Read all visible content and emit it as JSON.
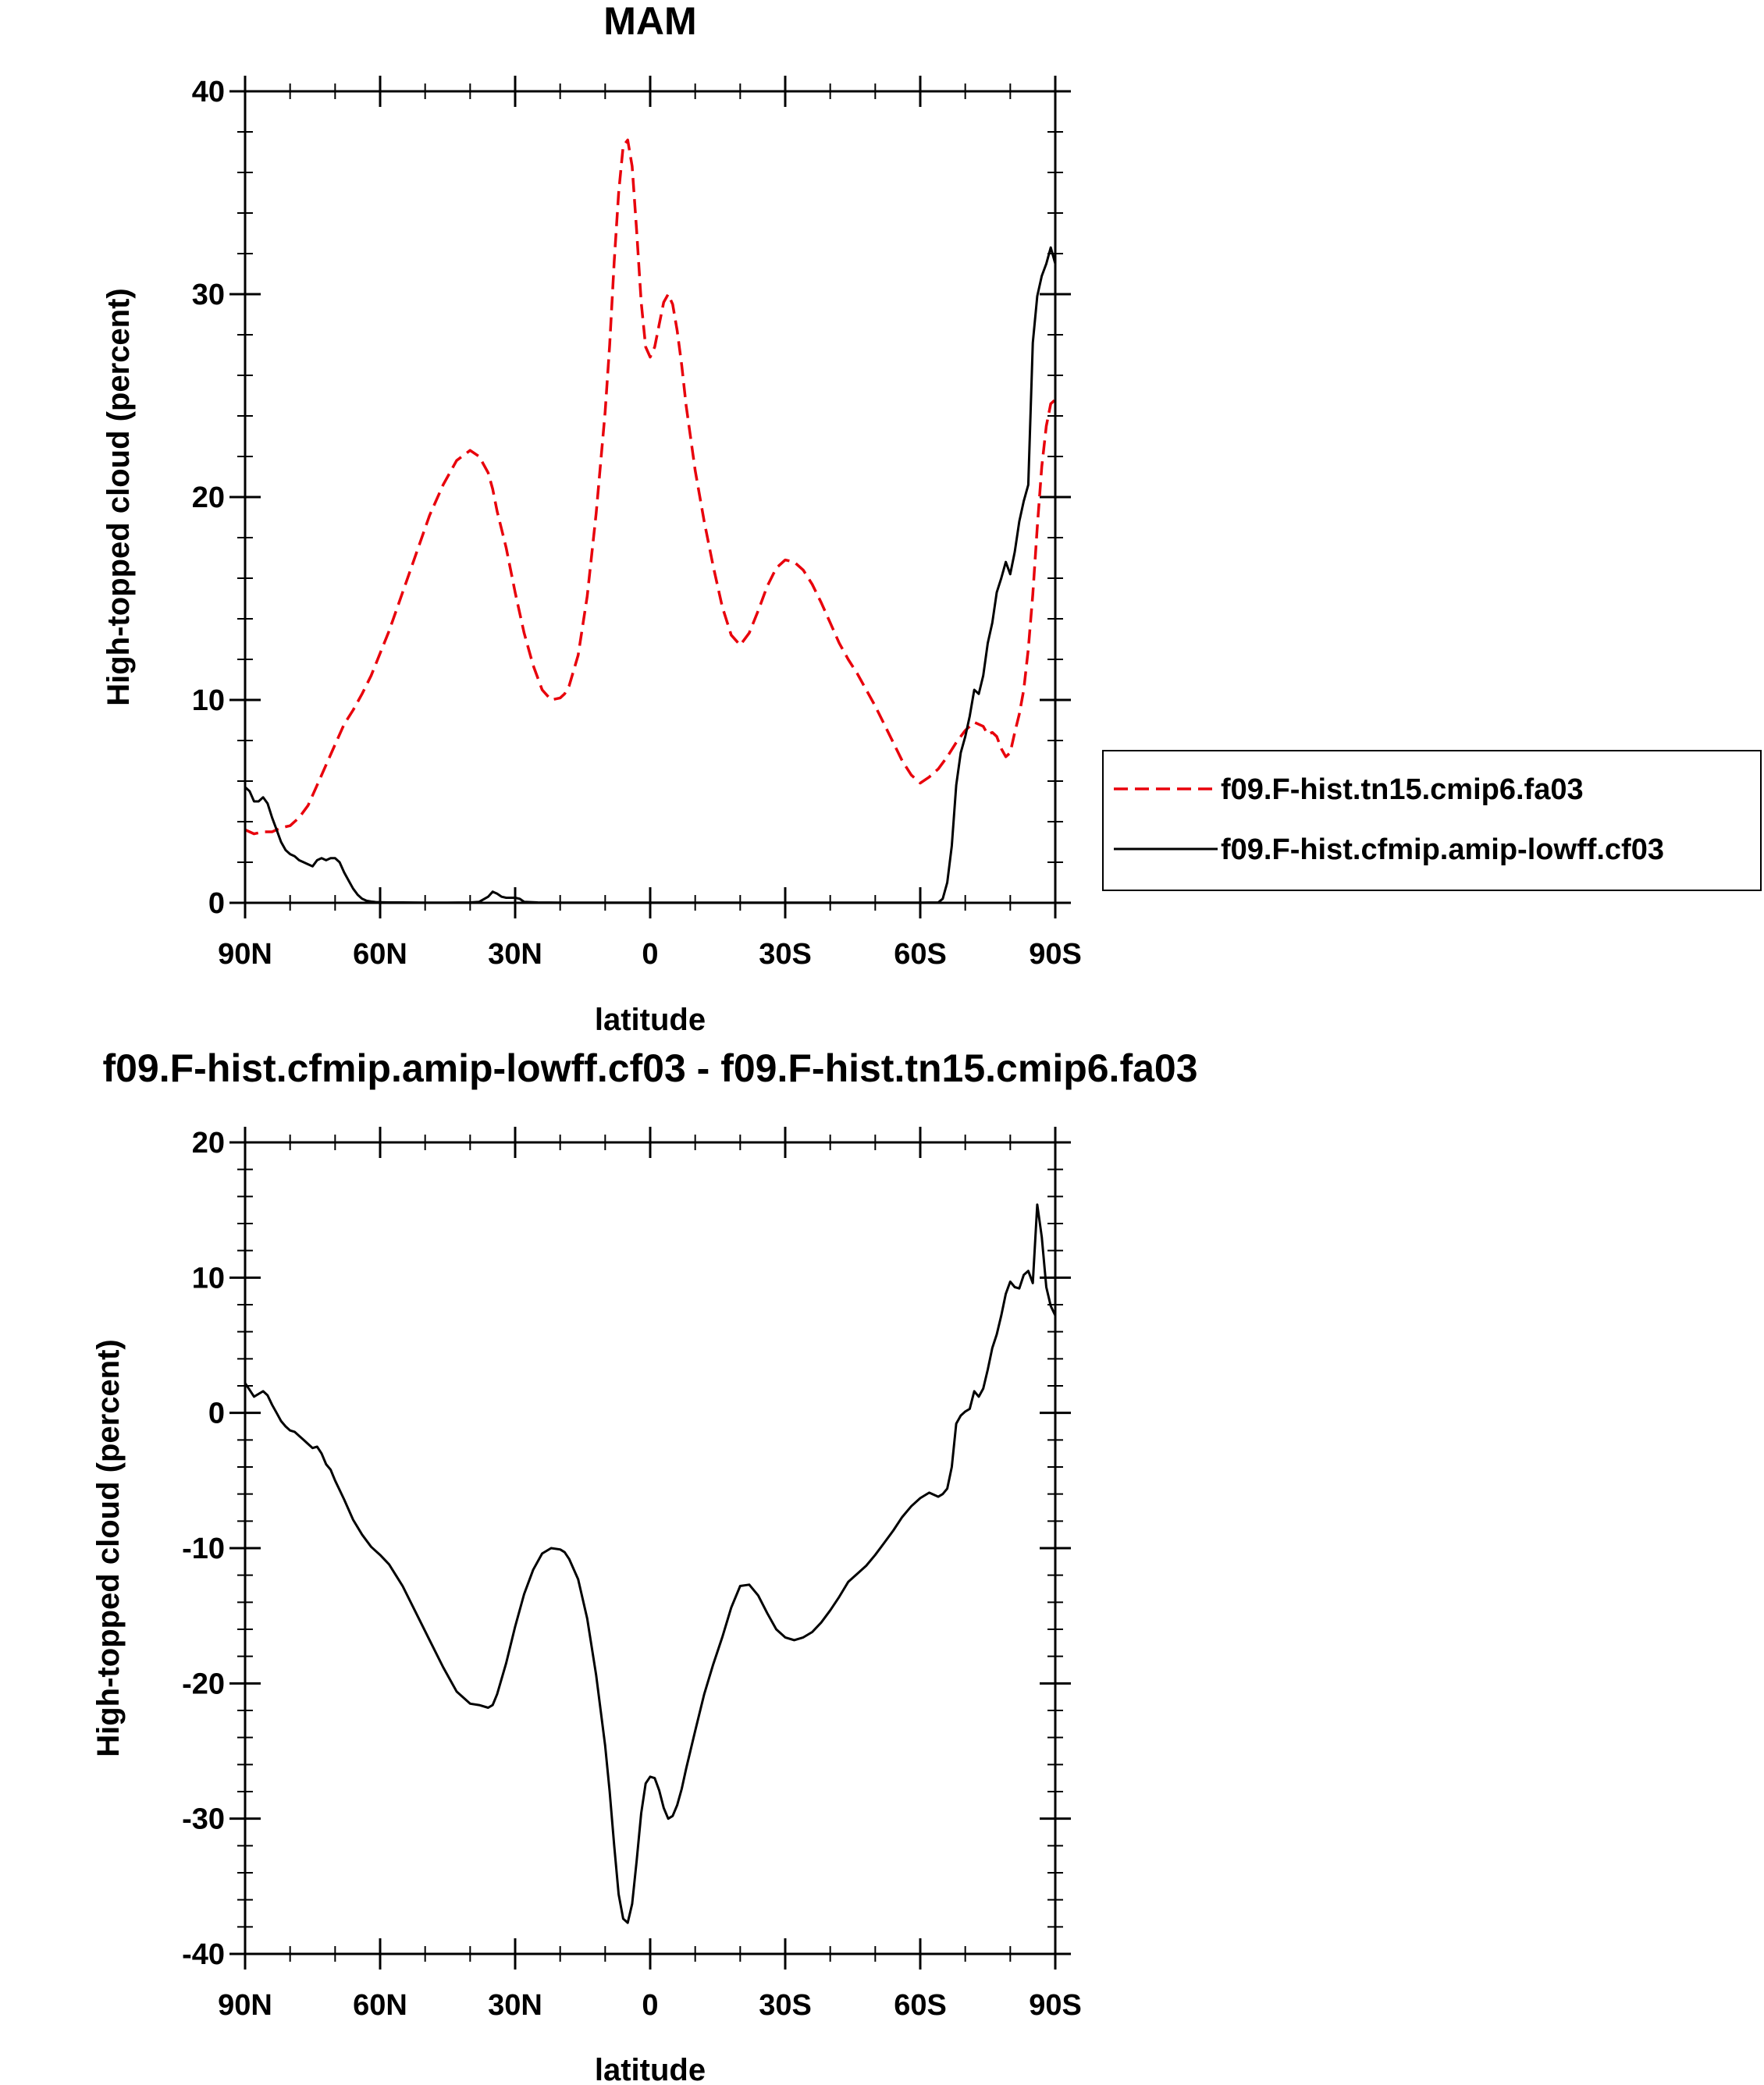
{
  "chart_data": [
    {
      "type": "line",
      "title": "MAM",
      "xlabel": "latitude",
      "ylabel": "High-topped cloud (percent)",
      "xlim": [
        90,
        -90
      ],
      "ylim": [
        0,
        40
      ],
      "x_ticks": [
        90,
        60,
        30,
        0,
        -30,
        -60,
        -90
      ],
      "x_tick_labels": [
        "90N",
        "60N",
        "30N",
        "0",
        "30S",
        "60S",
        "90S"
      ],
      "y_ticks": [
        0,
        10,
        20,
        30,
        40
      ],
      "y_tick_labels": [
        "0",
        "10",
        "20",
        "30",
        "40"
      ],
      "legend_position": "right",
      "series": [
        {
          "name": "f09.F-hist.tn15.cmip6.fa03",
          "color": "#e8000b",
          "dash": "dashed",
          "x": [
            90,
            88,
            86,
            84,
            82,
            80,
            78,
            76,
            74,
            72,
            70,
            68,
            66,
            64,
            62,
            60,
            58,
            55,
            52,
            49,
            46,
            43,
            40,
            38,
            36,
            35,
            34,
            32,
            30,
            28,
            26,
            24,
            22,
            20,
            19,
            18,
            16,
            14,
            12,
            10,
            9,
            8,
            7,
            6,
            5,
            4,
            3,
            2,
            1,
            0,
            -1,
            -2,
            -3,
            -4,
            -5,
            -6,
            -7,
            -8,
            -10,
            -12,
            -14,
            -16,
            -18,
            -20,
            -22,
            -24,
            -26,
            -28,
            -30,
            -32,
            -34,
            -36,
            -38,
            -40,
            -42,
            -44,
            -46,
            -48,
            -50,
            -52,
            -54,
            -56,
            -58,
            -60,
            -62,
            -64,
            -66,
            -68,
            -70,
            -72,
            -74,
            -75,
            -76,
            -77,
            -78,
            -79,
            -80,
            -81,
            -82,
            -83,
            -84,
            -85,
            -86,
            -87,
            -88,
            -89,
            -90
          ],
          "values": [
            3.6,
            3.4,
            3.5,
            3.5,
            3.7,
            3.8,
            4.2,
            4.8,
            5.8,
            6.8,
            7.8,
            8.8,
            9.5,
            10.3,
            11.2,
            12.3,
            13.4,
            15.3,
            17.2,
            19.1,
            20.6,
            21.8,
            22.3,
            22.0,
            21.2,
            20.4,
            19.3,
            17.5,
            15.3,
            13.3,
            11.7,
            10.5,
            10.0,
            10.1,
            10.3,
            10.7,
            12.2,
            15.1,
            19.2,
            24.2,
            27.5,
            31.6,
            35.0,
            37.3,
            37.6,
            36.3,
            33.1,
            29.6,
            27.4,
            26.9,
            27.4,
            28.5,
            29.6,
            30.0,
            29.5,
            28.2,
            26.5,
            24.5,
            21.3,
            18.8,
            16.6,
            14.6,
            13.2,
            12.7,
            13.3,
            14.4,
            15.6,
            16.5,
            16.9,
            16.8,
            16.4,
            15.7,
            14.8,
            13.8,
            12.8,
            12.0,
            11.3,
            10.5,
            9.7,
            8.8,
            7.9,
            7.0,
            6.3,
            5.9,
            6.2,
            6.6,
            7.2,
            7.9,
            8.5,
            8.9,
            8.7,
            8.3,
            8.4,
            8.2,
            7.6,
            7.2,
            7.4,
            8.4,
            9.3,
            10.5,
            12.5,
            15.2,
            18.5,
            21.5,
            23.5,
            24.6,
            24.8
          ]
        },
        {
          "name": "f09.F-hist.cfmip.amip-lowff.cf03",
          "color": "#000000",
          "dash": "solid",
          "x": [
            90,
            89,
            88,
            87,
            86,
            85,
            84,
            83,
            82,
            81,
            80,
            79,
            78,
            77,
            76,
            75,
            74,
            73,
            72,
            71,
            70,
            69,
            68,
            67,
            66,
            65,
            64,
            63,
            62,
            61,
            60,
            58,
            55,
            50,
            45,
            40,
            38,
            36,
            35,
            34,
            33,
            32,
            31,
            30,
            29,
            28,
            25,
            20,
            10,
            0,
            -10,
            -20,
            -30,
            -40,
            -50,
            -60,
            -64,
            -65,
            -66,
            -67,
            -68,
            -69,
            -70,
            -71,
            -72,
            -73,
            -74,
            -75,
            -76,
            -77,
            -78,
            -79,
            -80,
            -81,
            -82,
            -83,
            -84,
            -85,
            -86,
            -87,
            -88,
            -89,
            -90
          ],
          "values": [
            5.7,
            5.5,
            5.0,
            5.0,
            5.2,
            4.9,
            4.2,
            3.6,
            3.0,
            2.6,
            2.4,
            2.3,
            2.1,
            2.0,
            1.9,
            1.8,
            2.1,
            2.2,
            2.1,
            2.2,
            2.2,
            2.0,
            1.5,
            1.1,
            0.7,
            0.4,
            0.2,
            0.1,
            0.06,
            0.04,
            0.03,
            0.02,
            0.02,
            0.01,
            0.01,
            0.02,
            0.05,
            0.3,
            0.55,
            0.45,
            0.3,
            0.25,
            0.25,
            0.25,
            0.2,
            0.05,
            0.02,
            0.01,
            0.01,
            0.01,
            0.01,
            0.01,
            0.01,
            0.01,
            0.01,
            0.01,
            0.02,
            0.2,
            1.0,
            2.8,
            5.8,
            7.4,
            8.2,
            9.2,
            10.5,
            10.3,
            11.2,
            12.8,
            13.8,
            15.3,
            16.0,
            16.8,
            16.2,
            17.3,
            18.8,
            19.8,
            20.6,
            27.6,
            29.9,
            30.9,
            31.5,
            32.3,
            31.5
          ]
        }
      ]
    },
    {
      "type": "line",
      "title": "f09.F-hist.cfmip.amip-lowff.cf03 - f09.F-hist.tn15.cmip6.fa03",
      "xlabel": "latitude",
      "ylabel": "High-topped cloud (percent)",
      "xlim": [
        90,
        -90
      ],
      "ylim": [
        -40,
        20
      ],
      "x_ticks": [
        90,
        60,
        30,
        0,
        -30,
        -60,
        -90
      ],
      "x_tick_labels": [
        "90N",
        "60N",
        "30N",
        "0",
        "30S",
        "60S",
        "90S"
      ],
      "y_ticks": [
        -40,
        -30,
        -20,
        -10,
        0,
        10,
        20
      ],
      "y_tick_labels": [
        "-40",
        "-30",
        "-20",
        "-10",
        "0",
        "10",
        "20"
      ],
      "series": [
        {
          "color": "#000000",
          "dash": "solid",
          "x": [
            90,
            89,
            88,
            87,
            86,
            85,
            84,
            83,
            82,
            81,
            80,
            79,
            78,
            77,
            76,
            75,
            74,
            73,
            72,
            71,
            70,
            68,
            66,
            64,
            62,
            60,
            58,
            55,
            52,
            49,
            46,
            43,
            40,
            38,
            36,
            35,
            34,
            32,
            30,
            28,
            26,
            24,
            22,
            20,
            19,
            18,
            16,
            14,
            12,
            10,
            9,
            8,
            7,
            6,
            5,
            4,
            3,
            2,
            1,
            0,
            -1,
            -2,
            -3,
            -4,
            -5,
            -6,
            -7,
            -8,
            -10,
            -12,
            -14,
            -16,
            -18,
            -20,
            -22,
            -24,
            -26,
            -28,
            -30,
            -32,
            -34,
            -36,
            -38,
            -40,
            -42,
            -44,
            -46,
            -48,
            -50,
            -52,
            -54,
            -56,
            -58,
            -60,
            -62,
            -64,
            -65,
            -66,
            -67,
            -68,
            -69,
            -70,
            -71,
            -72,
            -73,
            -74,
            -75,
            -76,
            -77,
            -78,
            -79,
            -80,
            -81,
            -82,
            -83,
            -84,
            -85,
            -86,
            -87,
            -88,
            -89,
            -90
          ],
          "values": [
            2.2,
            1.7,
            1.2,
            1.4,
            1.6,
            1.3,
            0.6,
            0.0,
            -0.6,
            -1.0,
            -1.3,
            -1.4,
            -1.7,
            -2.0,
            -2.3,
            -2.6,
            -2.5,
            -3.0,
            -3.8,
            -4.2,
            -5.0,
            -6.4,
            -7.9,
            -9.0,
            -9.9,
            -10.5,
            -11.2,
            -12.8,
            -14.8,
            -16.8,
            -18.8,
            -20.6,
            -21.5,
            -21.6,
            -21.8,
            -21.6,
            -20.8,
            -18.5,
            -15.8,
            -13.4,
            -11.6,
            -10.4,
            -10.0,
            -10.1,
            -10.3,
            -10.8,
            -12.3,
            -15.2,
            -19.4,
            -24.6,
            -28.0,
            -32.0,
            -35.6,
            -37.4,
            -37.7,
            -36.3,
            -33.1,
            -29.6,
            -27.4,
            -26.9,
            -27.0,
            -27.9,
            -29.2,
            -30.0,
            -29.8,
            -29.0,
            -27.8,
            -26.3,
            -23.5,
            -20.8,
            -18.6,
            -16.6,
            -14.4,
            -12.8,
            -12.7,
            -13.5,
            -14.8,
            -16.0,
            -16.6,
            -16.8,
            -16.6,
            -16.2,
            -15.5,
            -14.6,
            -13.6,
            -12.5,
            -11.9,
            -11.3,
            -10.5,
            -9.6,
            -8.7,
            -7.7,
            -6.9,
            -6.3,
            -5.9,
            -6.2,
            -6.0,
            -5.6,
            -4.0,
            -0.8,
            -0.2,
            0.1,
            0.3,
            1.6,
            1.2,
            1.8,
            3.2,
            4.8,
            5.8,
            7.2,
            8.8,
            9.7,
            9.3,
            9.2,
            10.2,
            10.5,
            9.6,
            15.4,
            13.0,
            9.3,
            7.9,
            7.2
          ]
        }
      ]
    }
  ]
}
